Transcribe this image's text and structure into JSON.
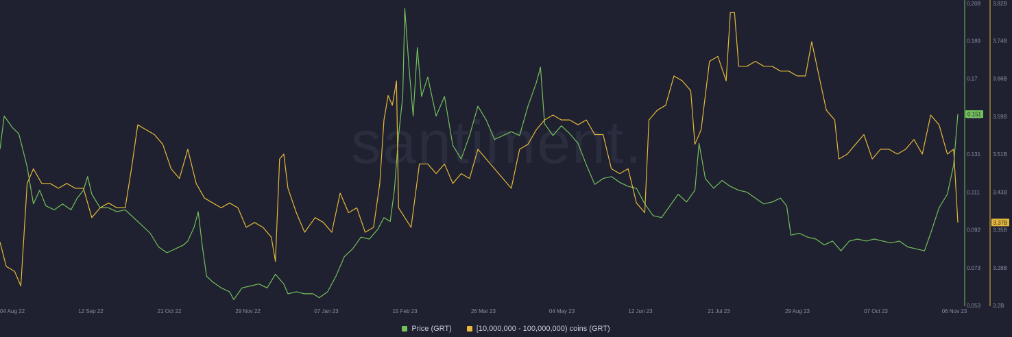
{
  "watermark": "santiment.",
  "chart_data": {
    "type": "line",
    "x_ticks": [
      "04 Aug 22",
      "12 Sep 22",
      "21 Oct 22",
      "29 Nov 22",
      "07 Jan 23",
      "15 Feb 23",
      "26 Mar 23",
      "04 May 23",
      "12 Jun 23",
      "21 Jul 23",
      "29 Aug 23",
      "07 Oct 23",
      "06 Nov 23"
    ],
    "x_range": [
      "2022-08-03",
      "2023-11-06"
    ],
    "price_axis": {
      "ticks": [
        "0.208",
        "0.189",
        "0.17",
        "0.151",
        "0.131",
        "0.111",
        "0.092",
        "0.073",
        "0.053"
      ],
      "ylim": [
        0.053,
        0.208
      ],
      "color": "#74c05a"
    },
    "holdings_axis": {
      "ticks": [
        "3.82B",
        "3.74B",
        "3.66B",
        "3.59B",
        "3.51B",
        "3.43B",
        "3.35B",
        "3.28B",
        "3.2B"
      ],
      "ylim": [
        3.2,
        3.82
      ],
      "color": "#e6b93a"
    },
    "current_price_label": "0.151",
    "current_holdings_label": "3.37B",
    "series": [
      {
        "name": "Price (GRT)",
        "axis": "price",
        "color": "#74c05a",
        "points": [
          [
            "2022-08-03",
            0.133
          ],
          [
            "2022-08-05",
            0.15
          ],
          [
            "2022-08-09",
            0.144
          ],
          [
            "2022-08-12",
            0.141
          ],
          [
            "2022-08-16",
            0.124
          ],
          [
            "2022-08-19",
            0.105
          ],
          [
            "2022-08-22",
            0.112
          ],
          [
            "2022-08-25",
            0.104
          ],
          [
            "2022-08-29",
            0.102
          ],
          [
            "2022-09-02",
            0.105
          ],
          [
            "2022-09-06",
            0.102
          ],
          [
            "2022-09-09",
            0.108
          ],
          [
            "2022-09-12",
            0.112
          ],
          [
            "2022-09-14",
            0.119
          ],
          [
            "2022-09-16",
            0.11
          ],
          [
            "2022-09-20",
            0.103
          ],
          [
            "2022-09-24",
            0.103
          ],
          [
            "2022-09-28",
            0.101
          ],
          [
            "2022-10-02",
            0.102
          ],
          [
            "2022-10-06",
            0.098
          ],
          [
            "2022-10-10",
            0.094
          ],
          [
            "2022-10-14",
            0.09
          ],
          [
            "2022-10-18",
            0.083
          ],
          [
            "2022-10-22",
            0.08
          ],
          [
            "2022-10-26",
            0.082
          ],
          [
            "2022-10-30",
            0.084
          ],
          [
            "2022-11-01",
            0.086
          ],
          [
            "2022-11-04",
            0.093
          ],
          [
            "2022-11-06",
            0.101
          ],
          [
            "2022-11-08",
            0.083
          ],
          [
            "2022-11-10",
            0.068
          ],
          [
            "2022-11-13",
            0.065
          ],
          [
            "2022-11-17",
            0.062
          ],
          [
            "2022-11-21",
            0.06
          ],
          [
            "2022-11-23",
            0.056
          ],
          [
            "2022-11-27",
            0.062
          ],
          [
            "2022-12-01",
            0.063
          ],
          [
            "2022-12-05",
            0.064
          ],
          [
            "2022-12-09",
            0.062
          ],
          [
            "2022-12-13",
            0.069
          ],
          [
            "2022-12-17",
            0.064
          ],
          [
            "2022-12-19",
            0.059
          ],
          [
            "2022-12-23",
            0.06
          ],
          [
            "2022-12-27",
            0.059
          ],
          [
            "2022-12-31",
            0.059
          ],
          [
            "2023-01-03",
            0.057
          ],
          [
            "2023-01-07",
            0.06
          ],
          [
            "2023-01-11",
            0.068
          ],
          [
            "2023-01-15",
            0.078
          ],
          [
            "2023-01-19",
            0.082
          ],
          [
            "2023-01-23",
            0.088
          ],
          [
            "2023-01-27",
            0.087
          ],
          [
            "2023-01-31",
            0.092
          ],
          [
            "2023-02-03",
            0.098
          ],
          [
            "2023-02-06",
            0.096
          ],
          [
            "2023-02-08",
            0.112
          ],
          [
            "2023-02-10",
            0.14
          ],
          [
            "2023-02-12",
            0.16
          ],
          [
            "2023-02-13",
            0.205
          ],
          [
            "2023-02-15",
            0.175
          ],
          [
            "2023-02-17",
            0.15
          ],
          [
            "2023-02-19",
            0.185
          ],
          [
            "2023-02-21",
            0.16
          ],
          [
            "2023-02-24",
            0.17
          ],
          [
            "2023-02-28",
            0.15
          ],
          [
            "2023-03-04",
            0.16
          ],
          [
            "2023-03-08",
            0.135
          ],
          [
            "2023-03-12",
            0.128
          ],
          [
            "2023-03-16",
            0.14
          ],
          [
            "2023-03-20",
            0.155
          ],
          [
            "2023-03-24",
            0.148
          ],
          [
            "2023-03-28",
            0.138
          ],
          [
            "2023-04-01",
            0.14
          ],
          [
            "2023-04-05",
            0.142
          ],
          [
            "2023-04-09",
            0.14
          ],
          [
            "2023-04-13",
            0.155
          ],
          [
            "2023-04-17",
            0.167
          ],
          [
            "2023-04-19",
            0.175
          ],
          [
            "2023-04-21",
            0.146
          ],
          [
            "2023-04-25",
            0.14
          ],
          [
            "2023-04-29",
            0.145
          ],
          [
            "2023-05-03",
            0.141
          ],
          [
            "2023-05-07",
            0.136
          ],
          [
            "2023-05-11",
            0.125
          ],
          [
            "2023-05-15",
            0.115
          ],
          [
            "2023-05-19",
            0.118
          ],
          [
            "2023-05-23",
            0.119
          ],
          [
            "2023-05-27",
            0.116
          ],
          [
            "2023-05-31",
            0.114
          ],
          [
            "2023-06-04",
            0.113
          ],
          [
            "2023-06-08",
            0.105
          ],
          [
            "2023-06-12",
            0.099
          ],
          [
            "2023-06-16",
            0.098
          ],
          [
            "2023-06-20",
            0.104
          ],
          [
            "2023-06-24",
            0.11
          ],
          [
            "2023-06-28",
            0.106
          ],
          [
            "2023-07-02",
            0.112
          ],
          [
            "2023-07-04",
            0.136
          ],
          [
            "2023-07-07",
            0.118
          ],
          [
            "2023-07-11",
            0.113
          ],
          [
            "2023-07-15",
            0.117
          ],
          [
            "2023-07-19",
            0.114
          ],
          [
            "2023-07-23",
            0.112
          ],
          [
            "2023-07-27",
            0.111
          ],
          [
            "2023-07-31",
            0.108
          ],
          [
            "2023-08-04",
            0.105
          ],
          [
            "2023-08-08",
            0.106
          ],
          [
            "2023-08-12",
            0.108
          ],
          [
            "2023-08-15",
            0.104
          ],
          [
            "2023-08-17",
            0.089
          ],
          [
            "2023-08-21",
            0.09
          ],
          [
            "2023-08-25",
            0.088
          ],
          [
            "2023-08-29",
            0.087
          ],
          [
            "2023-09-02",
            0.084
          ],
          [
            "2023-09-06",
            0.086
          ],
          [
            "2023-09-10",
            0.081
          ],
          [
            "2023-09-14",
            0.086
          ],
          [
            "2023-09-18",
            0.087
          ],
          [
            "2023-09-22",
            0.086
          ],
          [
            "2023-09-26",
            0.087
          ],
          [
            "2023-09-30",
            0.086
          ],
          [
            "2023-10-04",
            0.085
          ],
          [
            "2023-10-08",
            0.086
          ],
          [
            "2023-10-12",
            0.083
          ],
          [
            "2023-10-16",
            0.082
          ],
          [
            "2023-10-20",
            0.081
          ],
          [
            "2023-10-23",
            0.09
          ],
          [
            "2023-10-27",
            0.103
          ],
          [
            "2023-10-31",
            0.11
          ],
          [
            "2023-11-03",
            0.125
          ],
          [
            "2023-11-05",
            0.151
          ]
        ]
      },
      {
        "name": "[10,000,000 - 100,000,000) coins (GRT)",
        "axis": "holdings",
        "color": "#e6b93a",
        "points": [
          [
            "2022-08-03",
            3.33
          ],
          [
            "2022-08-06",
            3.28
          ],
          [
            "2022-08-10",
            3.27
          ],
          [
            "2022-08-13",
            3.24
          ],
          [
            "2022-08-16",
            3.45
          ],
          [
            "2022-08-19",
            3.48
          ],
          [
            "2022-08-23",
            3.45
          ],
          [
            "2022-08-27",
            3.45
          ],
          [
            "2022-08-31",
            3.44
          ],
          [
            "2022-09-04",
            3.45
          ],
          [
            "2022-09-08",
            3.44
          ],
          [
            "2022-09-12",
            3.44
          ],
          [
            "2022-09-16",
            3.38
          ],
          [
            "2022-09-20",
            3.4
          ],
          [
            "2022-09-24",
            3.41
          ],
          [
            "2022-09-28",
            3.4
          ],
          [
            "2022-10-02",
            3.4
          ],
          [
            "2022-10-05",
            3.48
          ],
          [
            "2022-10-08",
            3.57
          ],
          [
            "2022-10-12",
            3.56
          ],
          [
            "2022-10-16",
            3.55
          ],
          [
            "2022-10-20",
            3.53
          ],
          [
            "2022-10-24",
            3.48
          ],
          [
            "2022-10-28",
            3.46
          ],
          [
            "2022-11-01",
            3.52
          ],
          [
            "2022-11-05",
            3.45
          ],
          [
            "2022-11-09",
            3.42
          ],
          [
            "2022-11-13",
            3.41
          ],
          [
            "2022-11-17",
            3.4
          ],
          [
            "2022-11-21",
            3.41
          ],
          [
            "2022-11-25",
            3.4
          ],
          [
            "2022-11-29",
            3.36
          ],
          [
            "2022-12-03",
            3.37
          ],
          [
            "2022-12-07",
            3.36
          ],
          [
            "2022-12-11",
            3.34
          ],
          [
            "2022-12-13",
            3.29
          ],
          [
            "2022-12-15",
            3.5
          ],
          [
            "2022-12-17",
            3.51
          ],
          [
            "2022-12-19",
            3.44
          ],
          [
            "2022-12-23",
            3.39
          ],
          [
            "2022-12-27",
            3.35
          ],
          [
            "2023-01-01",
            3.38
          ],
          [
            "2023-01-05",
            3.37
          ],
          [
            "2023-01-09",
            3.35
          ],
          [
            "2023-01-13",
            3.43
          ],
          [
            "2023-01-17",
            3.39
          ],
          [
            "2023-01-21",
            3.4
          ],
          [
            "2023-01-25",
            3.35
          ],
          [
            "2023-01-29",
            3.36
          ],
          [
            "2023-02-01",
            3.45
          ],
          [
            "2023-02-03",
            3.58
          ],
          [
            "2023-02-05",
            3.63
          ],
          [
            "2023-02-07",
            3.61
          ],
          [
            "2023-02-09",
            3.66
          ],
          [
            "2023-02-10",
            3.4
          ],
          [
            "2023-02-13",
            3.38
          ],
          [
            "2023-02-16",
            3.36
          ],
          [
            "2023-02-20",
            3.49
          ],
          [
            "2023-02-24",
            3.49
          ],
          [
            "2023-02-28",
            3.47
          ],
          [
            "2023-03-04",
            3.49
          ],
          [
            "2023-03-08",
            3.45
          ],
          [
            "2023-03-12",
            3.47
          ],
          [
            "2023-03-16",
            3.46
          ],
          [
            "2023-03-20",
            3.52
          ],
          [
            "2023-03-24",
            3.5
          ],
          [
            "2023-03-28",
            3.48
          ],
          [
            "2023-04-01",
            3.46
          ],
          [
            "2023-04-05",
            3.44
          ],
          [
            "2023-04-09",
            3.52
          ],
          [
            "2023-04-13",
            3.53
          ],
          [
            "2023-04-17",
            3.56
          ],
          [
            "2023-04-21",
            3.58
          ],
          [
            "2023-04-25",
            3.59
          ],
          [
            "2023-04-29",
            3.58
          ],
          [
            "2023-05-03",
            3.58
          ],
          [
            "2023-05-07",
            3.57
          ],
          [
            "2023-05-11",
            3.58
          ],
          [
            "2023-05-15",
            3.55
          ],
          [
            "2023-05-19",
            3.55
          ],
          [
            "2023-05-23",
            3.48
          ],
          [
            "2023-05-27",
            3.47
          ],
          [
            "2023-05-31",
            3.48
          ],
          [
            "2023-06-04",
            3.41
          ],
          [
            "2023-06-08",
            3.39
          ],
          [
            "2023-06-10",
            3.58
          ],
          [
            "2023-06-14",
            3.6
          ],
          [
            "2023-06-18",
            3.61
          ],
          [
            "2023-06-22",
            3.67
          ],
          [
            "2023-06-26",
            3.66
          ],
          [
            "2023-06-30",
            3.64
          ],
          [
            "2023-07-02",
            3.53
          ],
          [
            "2023-07-05",
            3.56
          ],
          [
            "2023-07-09",
            3.7
          ],
          [
            "2023-07-13",
            3.71
          ],
          [
            "2023-07-17",
            3.66
          ],
          [
            "2023-07-19",
            3.8
          ],
          [
            "2023-07-21",
            3.8
          ],
          [
            "2023-07-23",
            3.69
          ],
          [
            "2023-07-27",
            3.69
          ],
          [
            "2023-07-31",
            3.7
          ],
          [
            "2023-08-04",
            3.69
          ],
          [
            "2023-08-08",
            3.69
          ],
          [
            "2023-08-12",
            3.68
          ],
          [
            "2023-08-16",
            3.68
          ],
          [
            "2023-08-20",
            3.67
          ],
          [
            "2023-08-24",
            3.67
          ],
          [
            "2023-08-27",
            3.74
          ],
          [
            "2023-08-30",
            3.68
          ],
          [
            "2023-09-03",
            3.6
          ],
          [
            "2023-09-07",
            3.58
          ],
          [
            "2023-09-09",
            3.5
          ],
          [
            "2023-09-13",
            3.51
          ],
          [
            "2023-09-17",
            3.53
          ],
          [
            "2023-09-21",
            3.55
          ],
          [
            "2023-09-25",
            3.5
          ],
          [
            "2023-09-29",
            3.52
          ],
          [
            "2023-10-03",
            3.52
          ],
          [
            "2023-10-07",
            3.51
          ],
          [
            "2023-10-11",
            3.52
          ],
          [
            "2023-10-15",
            3.54
          ],
          [
            "2023-10-19",
            3.51
          ],
          [
            "2023-10-23",
            3.59
          ],
          [
            "2023-10-27",
            3.57
          ],
          [
            "2023-10-31",
            3.51
          ],
          [
            "2023-11-03",
            3.52
          ],
          [
            "2023-11-05",
            3.37
          ]
        ]
      }
    ]
  }
}
